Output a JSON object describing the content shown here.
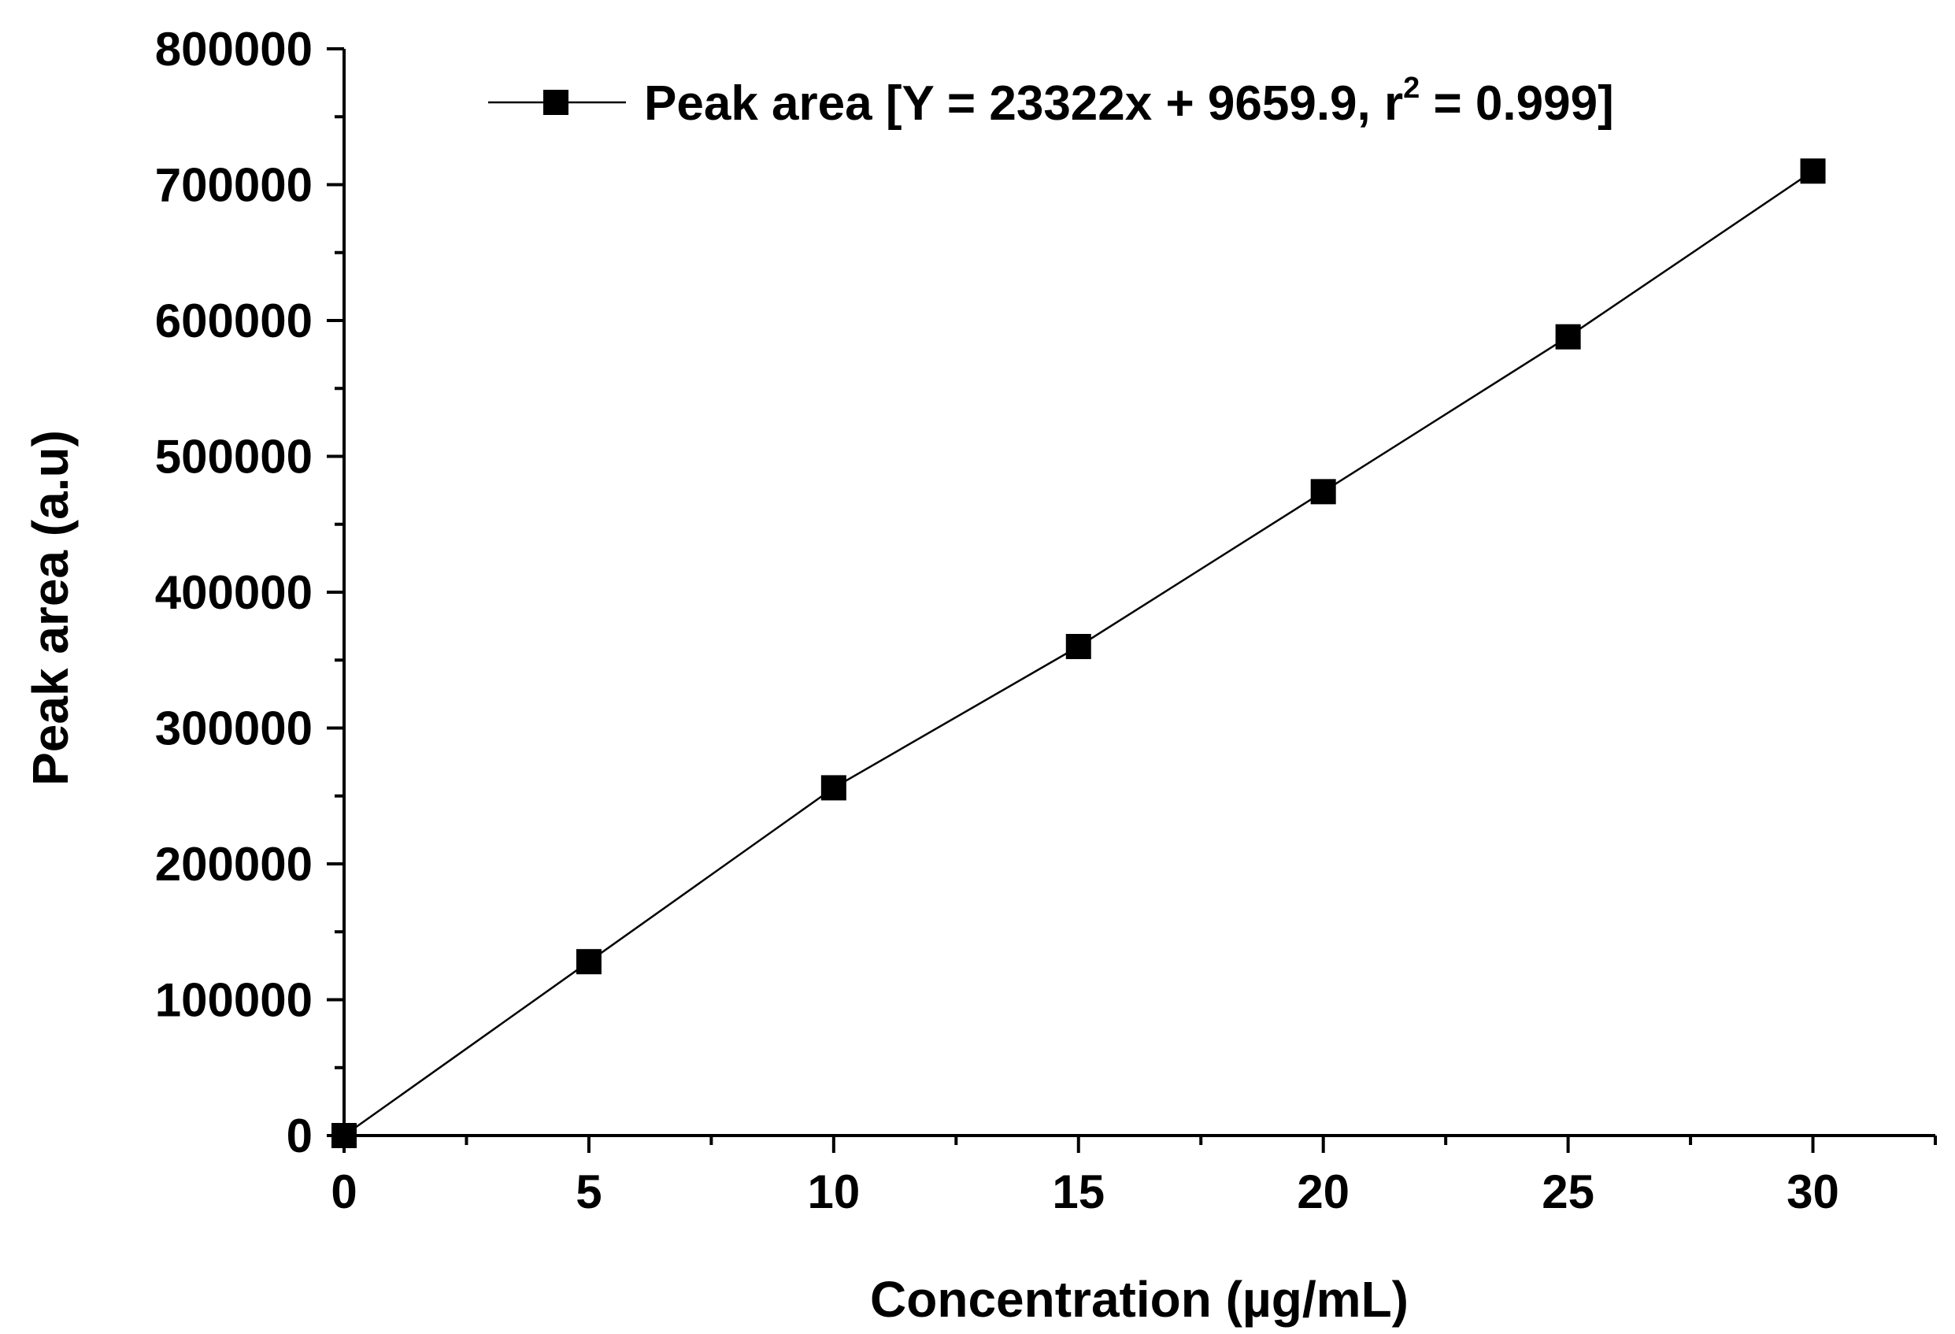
{
  "chart_data": {
    "type": "line",
    "xlabel": "Concentration (µg/mL)",
    "ylabel": "Peak area (a.u)",
    "xlim": [
      0,
      32.5
    ],
    "ylim": [
      0,
      800000
    ],
    "x_ticks": [
      0,
      5,
      10,
      15,
      20,
      25,
      30
    ],
    "x_tick_labels": [
      "0",
      "5",
      "10",
      "15",
      "20",
      "25",
      "30"
    ],
    "x_minor_ticks": [
      2.5,
      7.5,
      12.5,
      17.5,
      22.5,
      27.5,
      32.5
    ],
    "y_ticks": [
      0,
      100000,
      200000,
      300000,
      400000,
      500000,
      600000,
      700000,
      800000
    ],
    "y_tick_labels": [
      "0",
      "100000",
      "200000",
      "300000",
      "400000",
      "500000",
      "600000",
      "700000",
      "800000"
    ],
    "y_minor_ticks": [
      50000,
      150000,
      250000,
      350000,
      450000,
      550000,
      650000,
      750000
    ],
    "grid": false,
    "legend_position": "top-right",
    "series": [
      {
        "name_main": "Peak area [Y = 23322x + 9659.9, r",
        "name_sup": "2",
        "name_tail": " = 0.999]",
        "marker": "square",
        "color": "#000000",
        "x": [
          0,
          5,
          10,
          15,
          20,
          25,
          30
        ],
        "y": [
          0,
          128000,
          256000,
          360000,
          474000,
          588000,
          710000
        ]
      }
    ]
  }
}
